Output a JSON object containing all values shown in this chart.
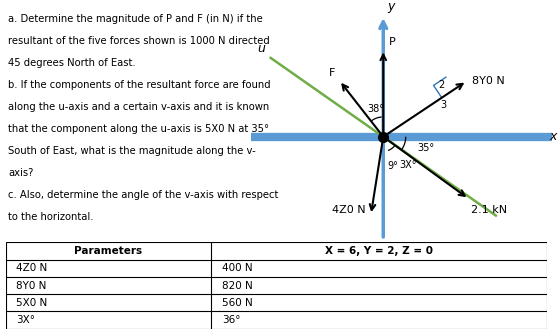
{
  "text_left": [
    "a. Determine the magnitude of P and F (in N) if the",
    "resultant of the five forces shown is 1000 N directed",
    "45 degrees North of East.",
    "b. If the components of the resultant force are found",
    "along the u-axis and a certain v-axis and it is known",
    "that the component along the u-axis is 5X0 N at 35°",
    "South of East, what is the magnitude along the v-",
    "axis?",
    "c. Also, determine the angle of the v-axis with respect",
    "to the horizontal."
  ],
  "background_color": "#ffffff",
  "table_headers": [
    "Parameters",
    "X = 6, Y = 2, Z = 0"
  ],
  "table_rows": [
    [
      "4Z0 N",
      "400 N"
    ],
    [
      "8Y0 N",
      "820 N"
    ],
    [
      "5X0 N",
      "560 N"
    ],
    [
      "3X°",
      "36°"
    ]
  ],
  "force_labels": {
    "P": "P",
    "F": "F",
    "u": "u",
    "8Y0N": "8Y0 N",
    "4Z0N": "4Z0 N",
    "2_1kN": "2.1 kN",
    "38deg": "38°",
    "35deg": "35°",
    "3Xdeg": "3X°",
    "9deg": "9°",
    "x_label": "x",
    "y_label": "y",
    "ratio_2": "2",
    "ratio_3": "3"
  },
  "x_axis_color": "#5B9BD5",
  "y_axis_color": "#5B9BD5",
  "u_axis_color": "#70AD47",
  "v_axis_color": "#70AD47",
  "arrow_color": "#000000",
  "right_angle_color": "#2E75B6"
}
